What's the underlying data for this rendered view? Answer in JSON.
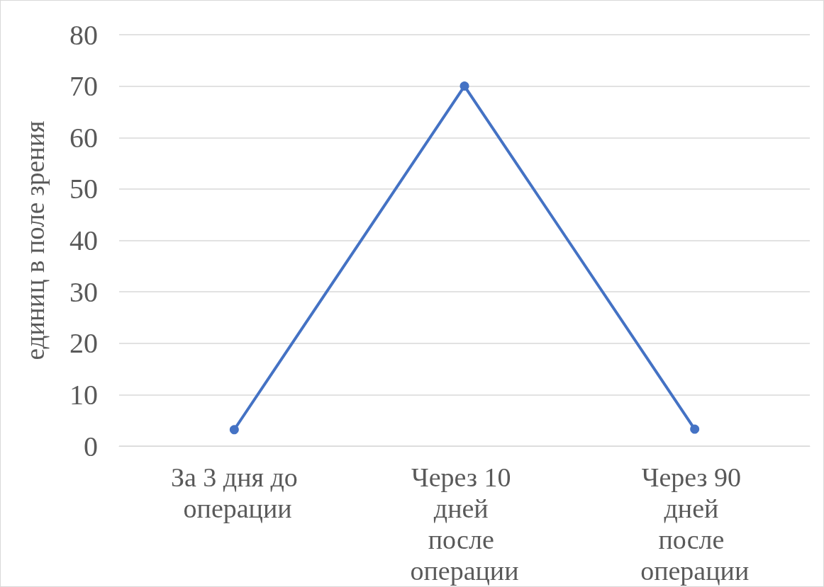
{
  "chart_data": {
    "type": "line",
    "ylabel": "единиц в поле зрения",
    "categories": [
      "За 3 дня до операции",
      "Через 10 дней после операции",
      "Через 90 дней после операции"
    ],
    "series": [
      {
        "color": "#4472c4",
        "values": [
          3.2,
          70,
          3.3
        ]
      }
    ],
    "ylim": [
      0,
      80
    ],
    "yticks": [
      0,
      10,
      20,
      30,
      40,
      50,
      60,
      70,
      80
    ],
    "grid": "y",
    "marker": "circle",
    "line_style": "solid"
  }
}
